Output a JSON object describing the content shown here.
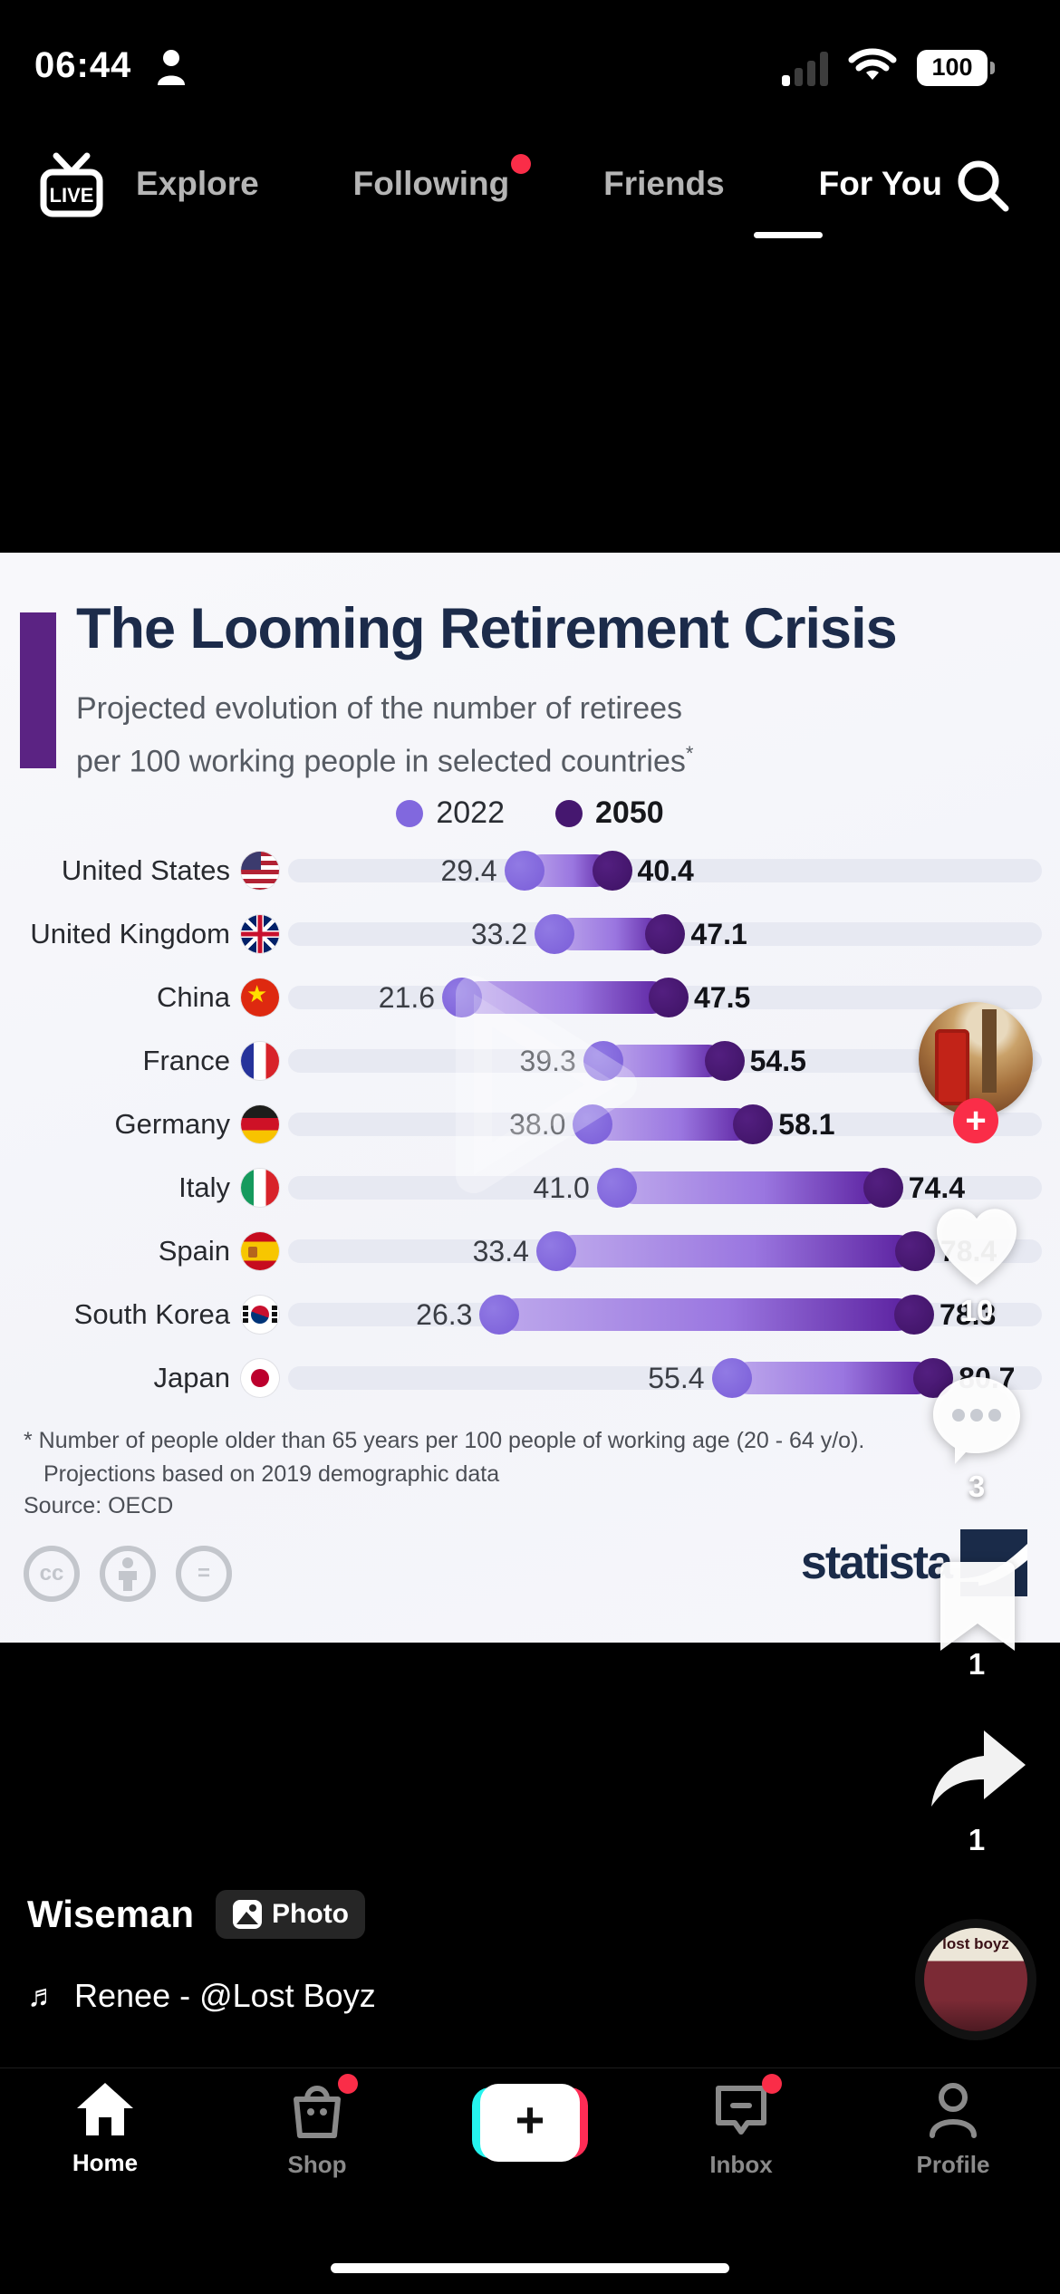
{
  "status_bar": {
    "time": "06:44",
    "battery_level": "100"
  },
  "top_nav": {
    "live_label": "LIVE",
    "items": [
      {
        "label": "Explore",
        "active": false,
        "badge": false
      },
      {
        "label": "Following",
        "active": false,
        "badge": true
      },
      {
        "label": "Friends",
        "active": false,
        "badge": false
      },
      {
        "label": "For You",
        "active": true,
        "badge": false
      }
    ]
  },
  "chart": {
    "title": "The Looming Retirement Crisis",
    "subtitle_line1": "Projected evolution of the number of retirees",
    "subtitle_line2": "per 100 working people in selected countries",
    "subtitle_asterisk": "*",
    "legend": [
      {
        "label": "2022",
        "color": "#8168de"
      },
      {
        "label": "2050",
        "color": "#45176f"
      }
    ],
    "footnote_line1": "* Number of people older than 65 years per 100 people of working age (20 - 64 y/o).",
    "footnote_line2": "Projections based on 2019 demographic data",
    "source": "Source: OECD",
    "brand": "statista",
    "cc_badges": [
      "cc",
      "attribution-person",
      "equals"
    ]
  },
  "chart_data": {
    "type": "bar",
    "variant": "horizontal-dumbbell",
    "title": "The Looming Retirement Crisis",
    "subtitle": "Projected evolution of the number of retirees per 100 working people in selected countries*",
    "categories": [
      "United States",
      "United Kingdom",
      "China",
      "France",
      "Germany",
      "Italy",
      "Spain",
      "South Korea",
      "Japan"
    ],
    "flags": [
      "us",
      "uk",
      "cn",
      "fr",
      "de",
      "it",
      "es",
      "kr",
      "jp"
    ],
    "series": [
      {
        "name": "2022",
        "color": "#8168de",
        "values": [
          29.4,
          33.2,
          21.6,
          39.3,
          38.0,
          41.0,
          33.4,
          26.3,
          55.4
        ]
      },
      {
        "name": "2050",
        "color": "#45176f",
        "values": [
          40.4,
          47.1,
          47.5,
          54.5,
          58.1,
          74.4,
          78.4,
          78.3,
          80.7
        ]
      }
    ],
    "xlim": [
      0,
      85
    ],
    "grid": false,
    "legend_position": "top-center",
    "source": "OECD"
  },
  "engagement": {
    "likes": "10",
    "comments": "3",
    "bookmarks": "1",
    "shares": "1"
  },
  "video": {
    "author": "Wiseman",
    "badge": "Photo",
    "sound": "Renee - @Lost Boyz",
    "album_text": "lost boyz"
  },
  "bottom_nav": {
    "items": [
      {
        "label": "Home",
        "active": true,
        "badge": false
      },
      {
        "label": "Shop",
        "active": false,
        "badge": true
      },
      {
        "label": "Inbox",
        "active": false,
        "badge": true
      },
      {
        "label": "Profile",
        "active": false,
        "badge": false
      }
    ]
  },
  "colors": {
    "tiktok_red": "#fa2d48",
    "tiktok_cyan": "#25f4ee",
    "tiktok_pink": "#fe2c55",
    "title_navy": "#1c2b4a",
    "accent_purple": "#5b2383",
    "dot_2022": "#8168de",
    "dot_2050": "#45176f",
    "track_gray": "#e7e9f2"
  }
}
